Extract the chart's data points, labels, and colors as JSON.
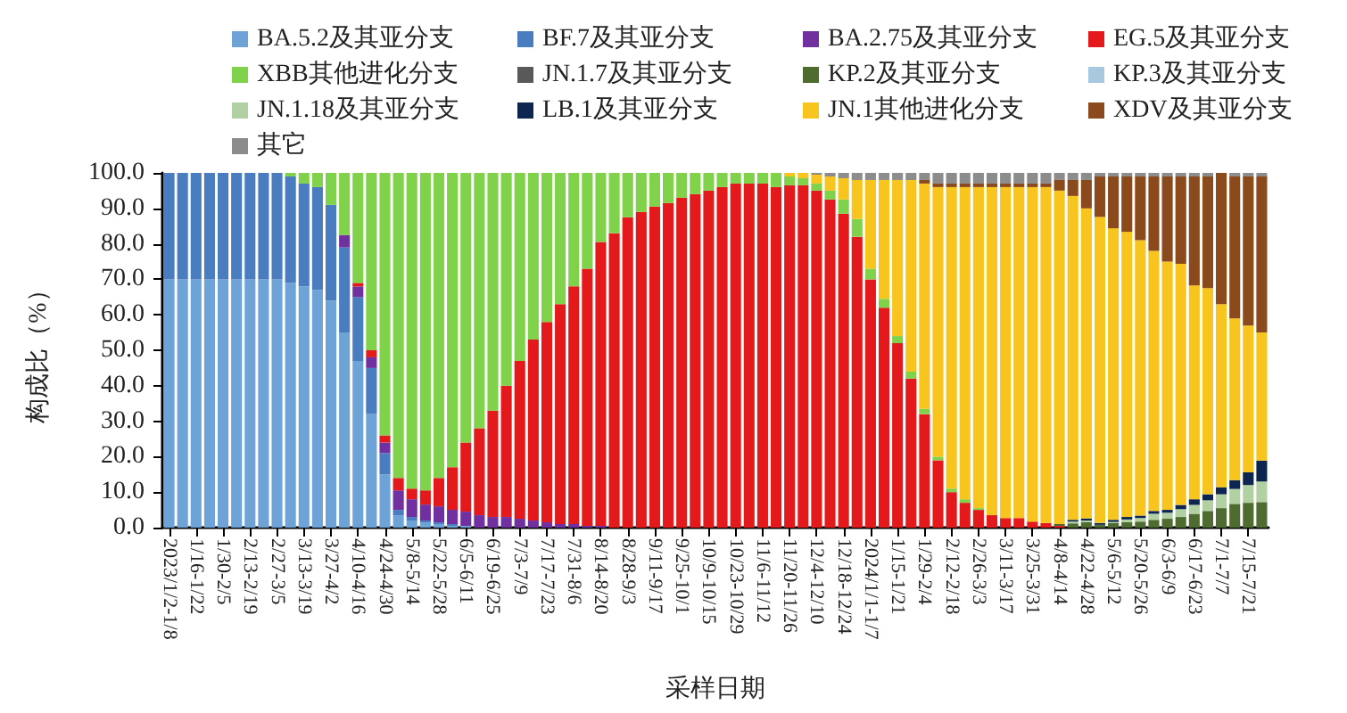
{
  "chart_data": {
    "type": "bar",
    "stacked": true,
    "xlabel": "采样日期",
    "ylabel": "构成比（%）",
    "categories": [
      "2023/1/2-1/8",
      null,
      "1/16-1/22",
      null,
      "1/30-2/5",
      null,
      "2/13-2/19",
      null,
      "2/27-3/5",
      null,
      "3/13-3/19",
      null,
      "3/27-4/2",
      null,
      "4/10-4/16",
      null,
      "4/24-4/30",
      null,
      "5/8-5/14",
      null,
      "5/22-5/28",
      null,
      "6/5-6/11",
      null,
      "6/19-6/25",
      null,
      "7/3-7/9",
      null,
      "7/17-7/23",
      null,
      "7/31-8/6",
      null,
      "8/14-8/20",
      null,
      "8/28-9/3",
      null,
      "9/11-9/17",
      null,
      "9/25-10/1",
      null,
      "10/9-10/15",
      null,
      "10/23-10/29",
      null,
      "11/6-11/12",
      null,
      "11/20-11/26",
      null,
      "12/4-12/10",
      null,
      "12/18-12/24",
      null,
      "2024/1/1-1/7",
      null,
      "1/15-1/21",
      null,
      "1/29-2/4",
      null,
      "2/12-2/18",
      null,
      "2/26-3/3",
      null,
      "3/11-3/17",
      null,
      "3/25-3/31",
      null,
      "4/8-4/14",
      null,
      "4/22-4/28",
      null,
      "5/6-5/12",
      null,
      "5/20-5/26",
      null,
      "6/3-6/9",
      null,
      "6/17-6/23",
      null,
      "7/1-7/7",
      null,
      "7/15-7/21",
      null
    ],
    "series": [
      {
        "name": "BA.5.2及其亚分支",
        "color": "#6ea3d8",
        "values": [
          70,
          70,
          70,
          70,
          70,
          70,
          70,
          70,
          70,
          69,
          68,
          67,
          64,
          55,
          47,
          32,
          15,
          3.5,
          2,
          1.5,
          1,
          0.5,
          0.5,
          null,
          null,
          null,
          null,
          null,
          null,
          null,
          null,
          null,
          null,
          null,
          null,
          null,
          null,
          null,
          null,
          null,
          null,
          null,
          null,
          null,
          null,
          null,
          null,
          null,
          null,
          null,
          null,
          null,
          null,
          null,
          null,
          null,
          null,
          null,
          null,
          null,
          null,
          null,
          null,
          null,
          null,
          null,
          null,
          null,
          null,
          null,
          null,
          null,
          null,
          null,
          null,
          null,
          null,
          null,
          null,
          null,
          null,
          null
        ]
      },
      {
        "name": "BF.7及其亚分支",
        "color": "#4a7cc0",
        "values": [
          30,
          30,
          30,
          30,
          30,
          30,
          30,
          30,
          30,
          30,
          29,
          29,
          27,
          24,
          18,
          13,
          6,
          1.5,
          1,
          0.5,
          0.5,
          0.5,
          null,
          null,
          null,
          null,
          null,
          null,
          null,
          null,
          null,
          null,
          null,
          null,
          null,
          null,
          null,
          null,
          null,
          null,
          null,
          null,
          null,
          null,
          null,
          null,
          null,
          null,
          null,
          null,
          null,
          null,
          null,
          null,
          null,
          null,
          null,
          null,
          null,
          null,
          null,
          null,
          null,
          null,
          null,
          null,
          null,
          null,
          null,
          null,
          null,
          null,
          null,
          null,
          null,
          null,
          null,
          null,
          null,
          null,
          null,
          null
        ]
      },
      {
        "name": "BA.2.75及其亚分支",
        "color": "#7030a0",
        "values": [
          null,
          null,
          null,
          null,
          null,
          null,
          null,
          null,
          null,
          null,
          null,
          null,
          null,
          3.5,
          3,
          3,
          3,
          5.5,
          5,
          4.5,
          4.5,
          4,
          4,
          3.5,
          3,
          3,
          2.5,
          2,
          1.5,
          1,
          1,
          0.5,
          0.5,
          null,
          null,
          null,
          null,
          null,
          null,
          null,
          null,
          null,
          null,
          null,
          null,
          null,
          null,
          null,
          null,
          null,
          null,
          null,
          null,
          null,
          null,
          null,
          null,
          null,
          null,
          null,
          null,
          null,
          null,
          null,
          null,
          null,
          null,
          null,
          null,
          null,
          null,
          null,
          null,
          null,
          null,
          null,
          null,
          null,
          null,
          null,
          null,
          null
        ]
      },
      {
        "name": "EG.5及其亚分支",
        "color": "#e3191b",
        "values": [
          null,
          null,
          null,
          null,
          null,
          null,
          null,
          null,
          null,
          null,
          null,
          null,
          null,
          null,
          1,
          2,
          2,
          3.5,
          3,
          4,
          8,
          12,
          19.5,
          24.5,
          30,
          37,
          44.5,
          51,
          56.5,
          62,
          67,
          72.5,
          80,
          83,
          87.5,
          89,
          90.5,
          91.5,
          93,
          94,
          95,
          96,
          97,
          97,
          97,
          96,
          96.5,
          96.5,
          95,
          92.5,
          88.5,
          82,
          70,
          62,
          52,
          42,
          32,
          19,
          10,
          7,
          5,
          3.5,
          2.7,
          2.7,
          1.7,
          1.3,
          0.5,
          null,
          null,
          null,
          null,
          null,
          null,
          null,
          null,
          null,
          null,
          null,
          null,
          null,
          null,
          null
        ]
      },
      {
        "name": "XBB其他进化分支",
        "color": "#7fd24a",
        "values": [
          null,
          null,
          null,
          null,
          null,
          null,
          null,
          null,
          null,
          1,
          3,
          4,
          9,
          17.5,
          31,
          50,
          74,
          86,
          89,
          89.5,
          86,
          83,
          76,
          72,
          67,
          60,
          53,
          47,
          42,
          37,
          32,
          27,
          19.5,
          17,
          12.5,
          11,
          9.5,
          8.5,
          7,
          6,
          5,
          4,
          3,
          3,
          3,
          4,
          2.5,
          2,
          2,
          2.5,
          4,
          5,
          3,
          2.5,
          2,
          2,
          1.5,
          1,
          1,
          1,
          0.5,
          null,
          null,
          null,
          null,
          null,
          null,
          null,
          null,
          null,
          null,
          null,
          null,
          null,
          null,
          null,
          null,
          null,
          null,
          null,
          null,
          null
        ]
      },
      {
        "name": "JN.1.7及其亚分支",
        "color": "#595959",
        "values": [
          null,
          null,
          null,
          null,
          null,
          null,
          null,
          null,
          null,
          null,
          null,
          null,
          null,
          null,
          null,
          null,
          null,
          null,
          null,
          null,
          null,
          null,
          null,
          null,
          null,
          null,
          null,
          null,
          null,
          null,
          null,
          null,
          null,
          null,
          null,
          null,
          null,
          null,
          null,
          null,
          null,
          null,
          null,
          null,
          null,
          null,
          null,
          null,
          null,
          null,
          null,
          null,
          null,
          null,
          null,
          null,
          null,
          null,
          null,
          null,
          null,
          null,
          null,
          null,
          null,
          null,
          null,
          null,
          null,
          null,
          null,
          null,
          null,
          null,
          null,
          null,
          null,
          null,
          null,
          null,
          null,
          null
        ]
      },
      {
        "name": "KP.2及其亚分支",
        "color": "#4e6b30",
        "values": [
          null,
          null,
          null,
          null,
          null,
          null,
          null,
          null,
          null,
          null,
          null,
          null,
          null,
          null,
          null,
          null,
          null,
          null,
          null,
          null,
          null,
          null,
          null,
          null,
          null,
          null,
          null,
          null,
          null,
          null,
          null,
          null,
          null,
          null,
          null,
          null,
          null,
          null,
          null,
          null,
          null,
          null,
          null,
          null,
          null,
          null,
          null,
          null,
          null,
          null,
          null,
          null,
          null,
          null,
          null,
          null,
          null,
          null,
          null,
          null,
          null,
          null,
          null,
          null,
          null,
          null,
          0.5,
          1.2,
          1.5,
          0.8,
          1.3,
          1.5,
          1.7,
          2.2,
          2.5,
          3,
          3.9,
          4.7,
          5.5,
          6.7,
          7,
          7.2
        ]
      },
      {
        "name": "KP.3及其亚分支",
        "color": "#a8c8e0",
        "values": [
          null,
          null,
          null,
          null,
          null,
          null,
          null,
          null,
          null,
          null,
          null,
          null,
          null,
          null,
          null,
          null,
          null,
          null,
          null,
          null,
          null,
          null,
          null,
          null,
          null,
          null,
          null,
          null,
          null,
          null,
          null,
          null,
          null,
          null,
          null,
          null,
          null,
          null,
          null,
          null,
          null,
          null,
          null,
          null,
          null,
          null,
          null,
          null,
          null,
          null,
          null,
          null,
          null,
          null,
          null,
          null,
          null,
          null,
          null,
          null,
          null,
          null,
          null,
          null,
          null,
          null,
          null,
          null,
          null,
          null,
          null,
          null,
          null,
          null,
          null,
          null,
          null,
          null,
          null,
          null,
          null,
          null
        ]
      },
      {
        "name": "JN.1.18及其亚分支",
        "color": "#b2d1a3",
        "values": [
          null,
          null,
          null,
          null,
          null,
          null,
          null,
          null,
          null,
          null,
          null,
          null,
          null,
          null,
          null,
          null,
          null,
          null,
          null,
          null,
          null,
          null,
          null,
          null,
          null,
          null,
          null,
          null,
          null,
          null,
          null,
          null,
          null,
          null,
          null,
          null,
          null,
          null,
          null,
          null,
          null,
          null,
          null,
          null,
          null,
          null,
          null,
          null,
          null,
          null,
          null,
          null,
          null,
          null,
          null,
          null,
          null,
          null,
          null,
          null,
          null,
          null,
          null,
          null,
          null,
          null,
          null,
          0.5,
          0.5,
          null,
          0.3,
          0.8,
          1,
          1.7,
          1.7,
          2.2,
          2.5,
          3,
          3.9,
          4.2,
          5,
          5.8
        ]
      },
      {
        "name": "LB.1及其亚分支",
        "color": "#0d2650",
        "values": [
          null,
          null,
          null,
          null,
          null,
          null,
          null,
          null,
          null,
          null,
          null,
          null,
          null,
          null,
          null,
          null,
          null,
          null,
          null,
          null,
          null,
          null,
          null,
          null,
          null,
          null,
          null,
          null,
          null,
          null,
          null,
          null,
          null,
          null,
          null,
          null,
          null,
          null,
          null,
          null,
          null,
          null,
          null,
          null,
          null,
          null,
          null,
          null,
          null,
          null,
          null,
          null,
          null,
          null,
          null,
          null,
          null,
          null,
          null,
          null,
          null,
          null,
          null,
          null,
          null,
          null,
          null,
          0.5,
          0.6,
          0.5,
          0.6,
          0.7,
          0.7,
          0.8,
          0.8,
          1.2,
          1.6,
          1.7,
          2,
          2.5,
          3.6,
          5.9
        ]
      },
      {
        "name": "JN.1其他进化分支",
        "color": "#f7c51d",
        "values": [
          null,
          null,
          null,
          null,
          null,
          null,
          null,
          null,
          null,
          null,
          null,
          null,
          null,
          null,
          null,
          null,
          null,
          null,
          null,
          null,
          null,
          null,
          null,
          null,
          null,
          null,
          null,
          null,
          null,
          null,
          null,
          null,
          null,
          null,
          null,
          null,
          null,
          null,
          null,
          null,
          null,
          null,
          null,
          null,
          null,
          null,
          1,
          1.5,
          2.5,
          4,
          6,
          11,
          25,
          33.5,
          44,
          54,
          63.5,
          76,
          85,
          88,
          90.5,
          92.5,
          93.3,
          93.3,
          94.3,
          94.7,
          94,
          91.3,
          87.4,
          86.3,
          82.2,
          80.4,
          77.6,
          73.3,
          70,
          68,
          60.3,
          58.1,
          51.6,
          45.6,
          41.4,
          36.1
        ]
      },
      {
        "name": "XDV及其亚分支",
        "color": "#8b4a1b",
        "values": [
          null,
          null,
          null,
          null,
          null,
          null,
          null,
          null,
          null,
          null,
          null,
          null,
          null,
          null,
          null,
          null,
          null,
          null,
          null,
          null,
          null,
          null,
          null,
          null,
          null,
          null,
          null,
          null,
          null,
          null,
          null,
          null,
          null,
          null,
          null,
          null,
          null,
          null,
          null,
          null,
          null,
          null,
          null,
          null,
          null,
          null,
          null,
          null,
          null,
          null,
          null,
          null,
          null,
          null,
          null,
          null,
          1,
          1,
          1,
          1,
          1,
          1,
          1,
          1,
          1,
          1,
          3,
          4.5,
          8,
          11.4,
          14.6,
          15.6,
          18,
          21,
          24,
          24.6,
          30.7,
          31.5,
          37,
          40,
          42,
          44
        ]
      },
      {
        "name": "其它",
        "color": "#8c8c8c",
        "values": [
          null,
          null,
          null,
          null,
          null,
          null,
          null,
          null,
          null,
          null,
          null,
          null,
          null,
          null,
          null,
          null,
          null,
          null,
          null,
          null,
          null,
          null,
          null,
          null,
          null,
          null,
          null,
          null,
          null,
          null,
          null,
          null,
          null,
          null,
          null,
          null,
          null,
          null,
          null,
          null,
          null,
          null,
          null,
          null,
          null,
          null,
          null,
          null,
          0.5,
          1,
          1.5,
          2,
          2,
          2,
          2,
          2,
          2,
          3,
          3,
          3,
          3,
          3,
          3,
          3,
          3,
          3,
          2,
          2,
          2,
          1,
          1,
          1,
          1,
          1,
          1,
          1,
          1,
          1,
          null,
          1,
          1,
          1
        ]
      }
    ],
    "ylim": [
      0,
      100
    ],
    "yticks": [
      {
        "value": 0,
        "label": "0.0"
      },
      {
        "value": 10,
        "label": "10.0"
      },
      {
        "value": 20,
        "label": "20.0"
      },
      {
        "value": 30,
        "label": "30.0"
      },
      {
        "value": 40,
        "label": "40.0"
      },
      {
        "value": 50,
        "label": "50.0"
      },
      {
        "value": 60,
        "label": "60.0"
      },
      {
        "value": 70,
        "label": "70.0"
      },
      {
        "value": 80,
        "label": "80.0"
      },
      {
        "value": 90,
        "label": "90.0"
      },
      {
        "value": 100,
        "label": "100.0"
      }
    ],
    "grid": false,
    "legend": "top"
  }
}
